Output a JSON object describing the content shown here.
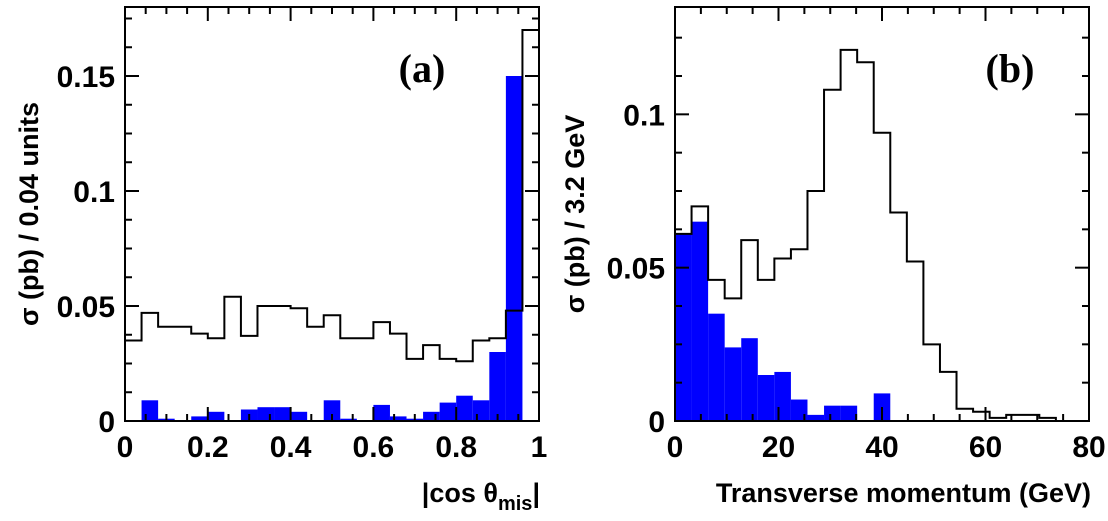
{
  "colors": {
    "filled_series": "#0000ff",
    "outline_series": "#000000"
  },
  "chart_data": [
    {
      "type": "histogram",
      "panel_label": "(a)",
      "xlabel_main": "|cos θ",
      "xlabel_sub": "mis",
      "xlabel_end": "|",
      "ylabel": "σ (pb) / 0.04 units",
      "xlim": [
        0,
        1
      ],
      "ylim": [
        0,
        0.18
      ],
      "xticks": [
        {
          "v": 0,
          "label": "0"
        },
        {
          "v": 0.2,
          "label": "0.2"
        },
        {
          "v": 0.4,
          "label": "0.4"
        },
        {
          "v": 0.6,
          "label": "0.6"
        },
        {
          "v": 0.8,
          "label": "0.8"
        },
        {
          "v": 1,
          "label": "1"
        }
      ],
      "yticks": [
        {
          "v": 0,
          "label": "0"
        },
        {
          "v": 0.05,
          "label": "0.05"
        },
        {
          "v": 0.1,
          "label": "0.1"
        },
        {
          "v": 0.15,
          "label": "0.15"
        }
      ],
      "bin_edges": [
        0,
        0.04,
        0.08,
        0.12,
        0.16,
        0.2,
        0.24,
        0.28,
        0.32,
        0.36,
        0.4,
        0.44,
        0.48,
        0.52,
        0.56,
        0.6,
        0.64,
        0.68,
        0.72,
        0.76,
        0.8,
        0.84,
        0.88,
        0.92,
        0.96,
        1.0
      ],
      "series": [
        {
          "style": "outline",
          "values": [
            0.035,
            0.047,
            0.041,
            0.041,
            0.038,
            0.036,
            0.054,
            0.037,
            0.05,
            0.05,
            0.049,
            0.041,
            0.046,
            0.036,
            0.036,
            0.043,
            0.038,
            0.027,
            0.033,
            0.027,
            0.026,
            0.035,
            0.036,
            0.048,
            0.17
          ]
        },
        {
          "style": "filled",
          "values": [
            0.0,
            0.009,
            0.001,
            0.0,
            0.002,
            0.004,
            0.0,
            0.005,
            0.006,
            0.006,
            0.004,
            0.0,
            0.009,
            0.001,
            0.0,
            0.007,
            0.002,
            0.001,
            0.004,
            0.008,
            0.011,
            0.009,
            0.03,
            0.15,
            0.0
          ]
        }
      ]
    },
    {
      "type": "histogram",
      "panel_label": "(b)",
      "xlabel": "Transverse momentum (GeV)",
      "ylabel": "σ (pb) / 3.2 GeV",
      "xlim": [
        0,
        80
      ],
      "ylim": [
        0,
        0.135
      ],
      "xticks": [
        {
          "v": 0,
          "label": "0"
        },
        {
          "v": 20,
          "label": "20"
        },
        {
          "v": 40,
          "label": "40"
        },
        {
          "v": 60,
          "label": "60"
        },
        {
          "v": 80,
          "label": "80"
        }
      ],
      "yticks": [
        {
          "v": 0,
          "label": "0"
        },
        {
          "v": 0.05,
          "label": "0.05"
        },
        {
          "v": 0.1,
          "label": "0.1"
        }
      ],
      "bin_edges": [
        0,
        3.2,
        6.4,
        9.6,
        12.8,
        16,
        19.2,
        22.4,
        25.6,
        28.8,
        32,
        35.2,
        38.4,
        41.6,
        44.8,
        48,
        51.2,
        54.4,
        57.6,
        60.8,
        64,
        67.2,
        70.4,
        73.6,
        76.8,
        80
      ],
      "series": [
        {
          "style": "outline",
          "values": [
            0.061,
            0.07,
            0.046,
            0.04,
            0.059,
            0.046,
            0.053,
            0.056,
            0.075,
            0.108,
            0.121,
            0.117,
            0.094,
            0.068,
            0.052,
            0.025,
            0.016,
            0.004,
            0.003,
            0.001,
            0.002,
            0.002,
            0.001,
            0.0,
            0.0
          ]
        },
        {
          "style": "filled",
          "values": [
            0.061,
            0.065,
            0.035,
            0.024,
            0.027,
            0.015,
            0.016,
            0.007,
            0.002,
            0.005,
            0.005,
            0.0,
            0.009,
            0.0,
            0.0,
            0.0,
            0.0,
            0.0,
            0.0,
            0.0,
            0.0,
            0.0,
            0.0,
            0.0,
            0.0
          ]
        }
      ]
    }
  ]
}
